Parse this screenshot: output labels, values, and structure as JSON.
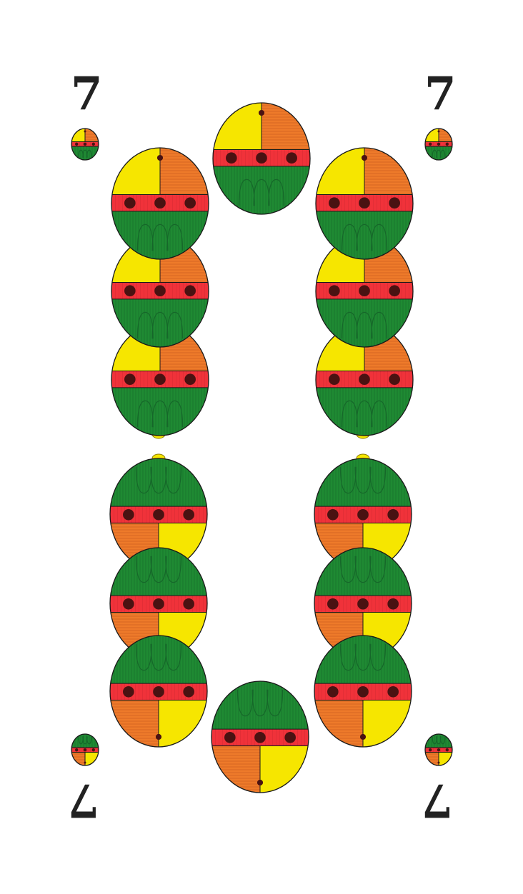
{
  "card": {
    "rank": "7",
    "suit": "bells",
    "pip_count": 14
  },
  "colors": {
    "background": "#ffffff",
    "yellow": "#f6e600",
    "orange": "#ee7a2a",
    "red": "#f0323a",
    "green": "#1f8a33",
    "dark_green": "#16672a",
    "dot": "#4a1212",
    "outline": "#1a1a1a"
  }
}
